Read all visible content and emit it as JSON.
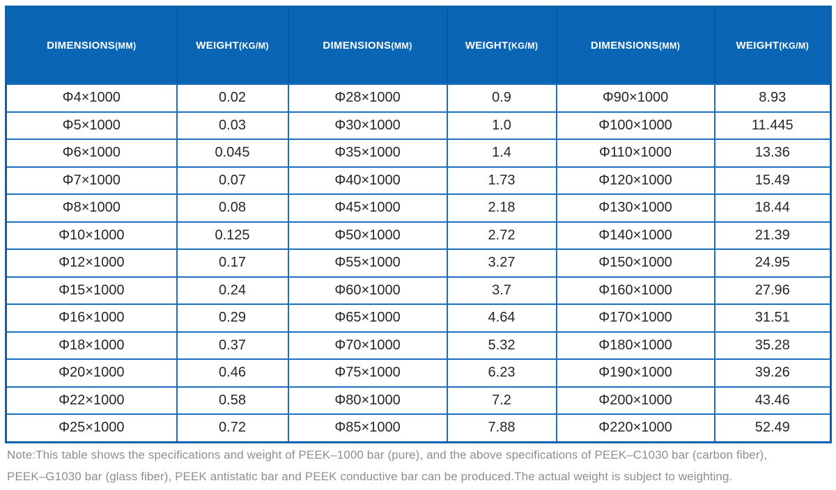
{
  "colors": {
    "header_background": "#0a66b4",
    "header_text": "#ffffff",
    "outer_border": "#0b61ac",
    "inner_border": "#1d6fbd",
    "header_divider": "#0857a3",
    "cell_text": "#262626",
    "note_text": "#8e8e8e"
  },
  "table": {
    "headers": [
      {
        "label": "DIMENSIONS",
        "unit": "(MM)"
      },
      {
        "label": "WEIGHT",
        "unit": "(KG/M)"
      },
      {
        "label": "DIMENSIONS",
        "unit": "(MM)"
      },
      {
        "label": "WEIGHT",
        "unit": "(KG/M)"
      },
      {
        "label": "DIMENSIONS",
        "unit": "(MM)"
      },
      {
        "label": "WEIGHT",
        "unit": "(KG/M)"
      }
    ],
    "rows": [
      [
        "Φ4×1000",
        "0.02",
        "Φ28×1000",
        "0.9",
        "Φ90×1000",
        "8.93"
      ],
      [
        "Φ5×1000",
        "0.03",
        "Φ30×1000",
        "1.0",
        "Φ100×1000",
        "11.445"
      ],
      [
        "Φ6×1000",
        "0.045",
        "Φ35×1000",
        "1.4",
        "Φ110×1000",
        "13.36"
      ],
      [
        "Φ7×1000",
        "0.07",
        "Φ40×1000",
        "1.73",
        "Φ120×1000",
        "15.49"
      ],
      [
        "Φ8×1000",
        "0.08",
        "Φ45×1000",
        "2.18",
        "Φ130×1000",
        "18.44"
      ],
      [
        "Φ10×1000",
        "0.125",
        "Φ50×1000",
        "2.72",
        "Φ140×1000",
        "21.39"
      ],
      [
        "Φ12×1000",
        "0.17",
        "Φ55×1000",
        "3.27",
        "Φ150×1000",
        "24.95"
      ],
      [
        "Φ15×1000",
        "0.24",
        "Φ60×1000",
        "3.7",
        "Φ160×1000",
        "27.96"
      ],
      [
        "Φ16×1000",
        "0.29",
        "Φ65×1000",
        "4.64",
        "Φ170×1000",
        "31.51"
      ],
      [
        "Φ18×1000",
        "0.37",
        "Φ70×1000",
        "5.32",
        "Φ180×1000",
        "35.28"
      ],
      [
        "Φ20×1000",
        "0.46",
        "Φ75×1000",
        "6.23",
        "Φ190×1000",
        "39.26"
      ],
      [
        "Φ22×1000",
        "0.58",
        "Φ80×1000",
        "7.2",
        "Φ200×1000",
        "43.46"
      ],
      [
        "Φ25×1000",
        "0.72",
        "Φ85×1000",
        "7.88",
        "Φ220×1000",
        "52.49"
      ]
    ]
  },
  "note": {
    "line1": "Note:This table shows the specifications and weight of PEEK–1000 bar (pure), and the above specifications of PEEK–C1030 bar (carbon fiber),",
    "line2": "PEEK–G1030 bar (glass fiber), PEEK antistatic bar and PEEK conductive bar can be produced.The actual weight is subject to weighting."
  }
}
